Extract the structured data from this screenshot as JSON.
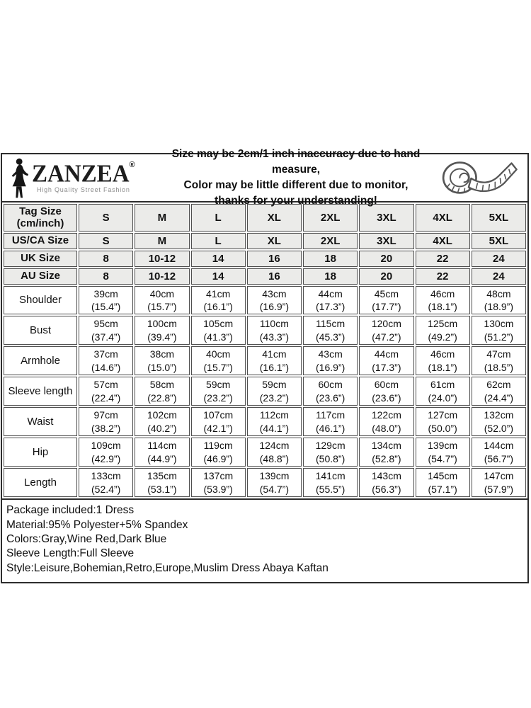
{
  "brand": {
    "name": "ZANZEA",
    "registered": "®",
    "tagline": "High Quality Street Fashion"
  },
  "icons": {
    "logo_figure": "woman-silhouette-icon",
    "tape": "measuring-tape-icon"
  },
  "disclaimer": {
    "line1": "Size may be 2cm/1 inch inaccuracy due to hand measure,",
    "line2": "Color may be little different due to monitor,",
    "line3": "thanks for your understanding!"
  },
  "size_table": {
    "rows": [
      {
        "kind": "size",
        "label": "Tag Size\n(cm/inch)",
        "cells": [
          "S",
          "M",
          "L",
          "XL",
          "2XL",
          "3XL",
          "4XL",
          "5XL"
        ]
      },
      {
        "kind": "size",
        "label": "US/CA Size",
        "cells": [
          "S",
          "M",
          "L",
          "XL",
          "2XL",
          "3XL",
          "4XL",
          "5XL"
        ]
      },
      {
        "kind": "size",
        "label": "UK Size",
        "cells": [
          "8",
          "10-12",
          "14",
          "16",
          "18",
          "20",
          "22",
          "24"
        ]
      },
      {
        "kind": "size",
        "label": "AU Size",
        "cells": [
          "8",
          "10-12",
          "14",
          "16",
          "18",
          "20",
          "22",
          "24"
        ]
      },
      {
        "kind": "measure",
        "label": "Shoulder",
        "cells": [
          "39cm\n(15.4”)",
          "40cm\n(15.7”)",
          "41cm\n(16.1”)",
          "43cm\n(16.9”)",
          "44cm\n(17.3”)",
          "45cm\n(17.7”)",
          "46cm\n(18.1”)",
          "48cm\n(18.9”)"
        ]
      },
      {
        "kind": "measure",
        "label": "Bust",
        "cells": [
          "95cm\n(37.4”)",
          "100cm\n(39.4”)",
          "105cm\n(41.3”)",
          "110cm\n(43.3”)",
          "115cm\n(45.3”)",
          "120cm\n(47.2”)",
          "125cm\n(49.2”)",
          "130cm\n(51.2”)"
        ]
      },
      {
        "kind": "measure",
        "label": "Armhole",
        "cells": [
          "37cm\n(14.6”)",
          "38cm\n(15.0”)",
          "40cm\n(15.7”)",
          "41cm\n(16.1”)",
          "43cm\n(16.9”)",
          "44cm\n(17.3”)",
          "46cm\n(18.1”)",
          "47cm\n(18.5”)"
        ]
      },
      {
        "kind": "measure",
        "label": "Sleeve length",
        "cells": [
          "57cm\n(22.4”)",
          "58cm\n(22.8”)",
          "59cm\n(23.2”)",
          "59cm\n(23.2”)",
          "60cm\n(23.6”)",
          "60cm\n(23.6”)",
          "61cm\n(24.0”)",
          "62cm\n(24.4”)"
        ]
      },
      {
        "kind": "measure",
        "label": "Waist",
        "cells": [
          "97cm\n(38.2”)",
          "102cm\n(40.2”)",
          "107cm\n(42.1”)",
          "112cm\n(44.1”)",
          "117cm\n(46.1”)",
          "122cm\n(48.0”)",
          "127cm\n(50.0”)",
          "132cm\n(52.0”)"
        ]
      },
      {
        "kind": "measure",
        "label": "Hip",
        "cells": [
          "109cm\n(42.9”)",
          "114cm\n(44.9”)",
          "119cm\n(46.9”)",
          "124cm\n(48.8”)",
          "129cm\n(50.8”)",
          "134cm\n(52.8”)",
          "139cm\n(54.7”)",
          "144cm\n(56.7”)"
        ]
      },
      {
        "kind": "measure",
        "label": "Length",
        "cells": [
          "133cm\n(52.4”)",
          "135cm\n(53.1”)",
          "137cm\n(53.9”)",
          "139cm\n(54.7”)",
          "141cm\n(55.5”)",
          "143cm\n(56.3”)",
          "145cm\n(57.1”)",
          "147cm\n(57.9”)"
        ]
      }
    ]
  },
  "details": {
    "lines": [
      "Package included:1 Dress",
      "Material:95% Polyester+5% Spandex",
      "Colors:Gray,Wine Red,Dark Blue",
      "Sleeve Length:Full Sleeve",
      "Style:Leisure,Bohemian,Retro,Europe,Muslim Dress Abaya Kaftan"
    ]
  },
  "colors": {
    "cell_gray": "#ebebe9",
    "border_dark": "#2d2d2d",
    "cell_border": "#4f4f4f",
    "text": "#111111"
  }
}
